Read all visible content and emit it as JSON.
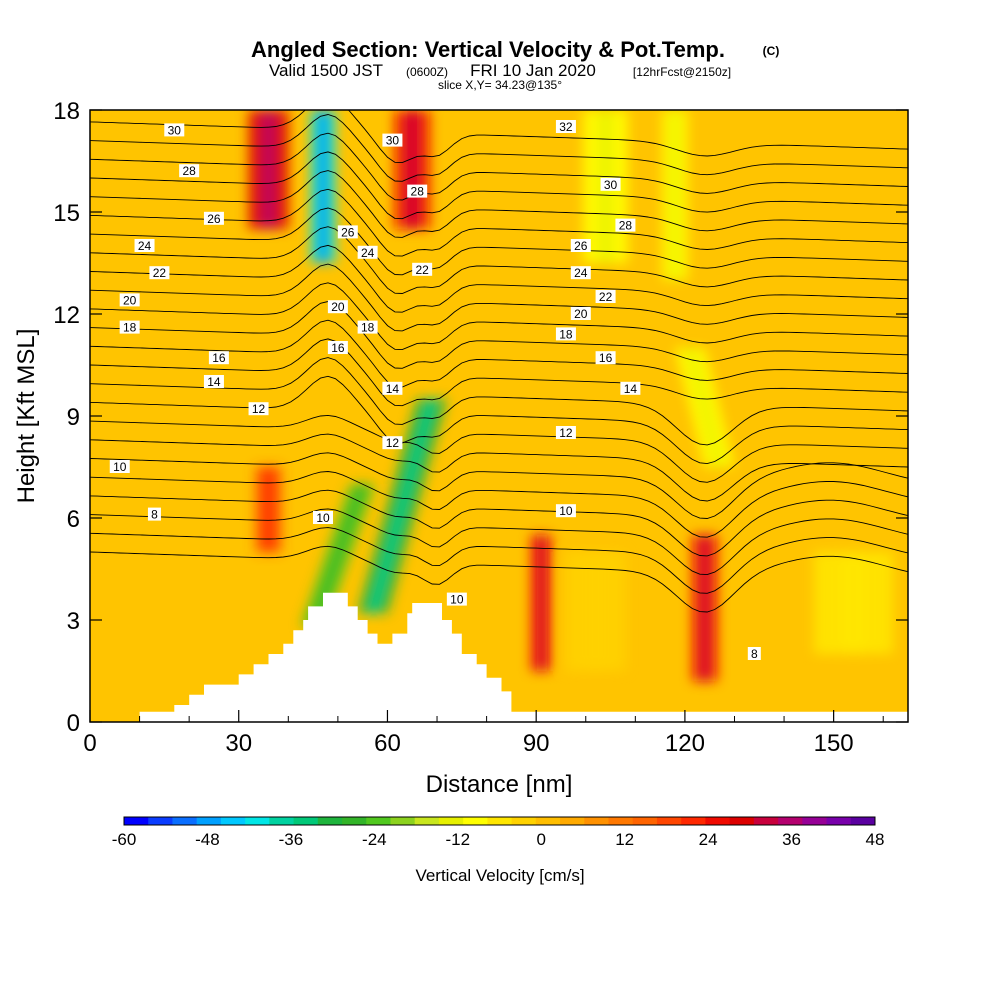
{
  "header": {
    "title_main": "Angled Section: Vertical Velocity & Pot.Temp.",
    "title_mark": "(C)",
    "valid_prefix": "Valid 1500 JST",
    "valid_utc": "(0600Z)",
    "valid_date": "FRI 10 Jan 2020",
    "forecast": "[12hrFcst@2150z]",
    "slice": "slice X,Y= 34.23@135°"
  },
  "chart_data": {
    "type": "heatmap",
    "xlabel": "Distance [nm]",
    "ylabel": "Height [Kft MSL]",
    "xlim": [
      0,
      165
    ],
    "ylim": [
      0,
      18
    ],
    "xticks": [
      0,
      30,
      60,
      90,
      120,
      150
    ],
    "yticks": [
      0,
      3,
      6,
      9,
      12,
      15,
      18
    ],
    "colorbar": {
      "label": "Vertical Velocity [cm/s]",
      "min": -60,
      "max": 48,
      "step": 3,
      "tick_values": [
        -60,
        -48,
        -36,
        -24,
        -12,
        0,
        12,
        24,
        36,
        48
      ],
      "colors": [
        "#0000ff",
        "#0a3cff",
        "#0a6eff",
        "#00a0ff",
        "#00c8ff",
        "#00e6e6",
        "#00d2a0",
        "#00c878",
        "#1eb43c",
        "#32b428",
        "#50c81e",
        "#8cd21e",
        "#c8e61e",
        "#e6f000",
        "#ffff00",
        "#ffe600",
        "#ffd200",
        "#ffbe00",
        "#ffaa00",
        "#ff9100",
        "#ff7800",
        "#ff6400",
        "#ff4600",
        "#ff2800",
        "#f00a00",
        "#dc0000",
        "#c8003c",
        "#b4006e",
        "#960096",
        "#7800aa",
        "#5a00a0"
      ]
    },
    "terrain": [
      [
        0,
        0
      ],
      [
        10,
        0
      ],
      [
        10,
        0.3
      ],
      [
        17,
        0.3
      ],
      [
        17,
        0.5
      ],
      [
        20,
        0.5
      ],
      [
        20,
        0.8
      ],
      [
        23,
        0.8
      ],
      [
        23,
        1.1
      ],
      [
        30,
        1.1
      ],
      [
        30,
        1.4
      ],
      [
        33,
        1.4
      ],
      [
        33,
        1.7
      ],
      [
        36,
        1.7
      ],
      [
        36,
        2.0
      ],
      [
        39,
        2.0
      ],
      [
        39,
        2.3
      ],
      [
        41,
        2.3
      ],
      [
        41,
        2.7
      ],
      [
        43,
        2.7
      ],
      [
        43,
        3.0
      ],
      [
        44,
        3.0
      ],
      [
        44,
        3.4
      ],
      [
        47,
        3.4
      ],
      [
        47,
        3.8
      ],
      [
        52,
        3.8
      ],
      [
        52,
        3.4
      ],
      [
        54,
        3.4
      ],
      [
        54,
        3.0
      ],
      [
        56,
        3.0
      ],
      [
        56,
        2.6
      ],
      [
        58,
        2.6
      ],
      [
        58,
        2.3
      ],
      [
        61,
        2.3
      ],
      [
        61,
        2.6
      ],
      [
        64,
        2.6
      ],
      [
        64,
        3.2
      ],
      [
        65,
        3.2
      ],
      [
        65,
        3.5
      ],
      [
        71,
        3.5
      ],
      [
        71,
        3.0
      ],
      [
        73,
        3.0
      ],
      [
        73,
        2.6
      ],
      [
        75,
        2.6
      ],
      [
        75,
        2.0
      ],
      [
        78,
        2.0
      ],
      [
        78,
        1.7
      ],
      [
        80,
        1.7
      ],
      [
        80,
        1.3
      ],
      [
        83,
        1.3
      ],
      [
        83,
        0.9
      ],
      [
        85,
        0.9
      ],
      [
        85,
        0.3
      ],
      [
        165,
        0.3
      ],
      [
        165,
        0
      ]
    ],
    "vertical_velocity_features": [
      {
        "x": 47,
        "top": 18,
        "bottom": 13.5,
        "width": 5,
        "value": -40,
        "tilt": 0
      },
      {
        "x": 63,
        "top": 9.5,
        "bottom": 3.2,
        "width": 6,
        "value": -30,
        "tilt": 12
      },
      {
        "x": 50,
        "top": 7,
        "bottom": 2.8,
        "width": 5,
        "value": -22,
        "tilt": 10
      },
      {
        "x": 36,
        "top": 18,
        "bottom": 14.5,
        "width": 8,
        "value": 28,
        "tilt": 0
      },
      {
        "x": 65,
        "top": 18,
        "bottom": 14.5,
        "width": 7,
        "value": 27,
        "tilt": 0
      },
      {
        "x": 36,
        "top": 7.5,
        "bottom": 5.0,
        "width": 5,
        "value": 18,
        "tilt": 0
      },
      {
        "x": 91,
        "top": 5.5,
        "bottom": 1.5,
        "width": 4,
        "value": 27,
        "tilt": 0
      },
      {
        "x": 124,
        "top": 5.5,
        "bottom": 1.2,
        "width": 5,
        "value": 25,
        "tilt": 0
      },
      {
        "x": 104,
        "top": 18,
        "bottom": 13.5,
        "width": 9,
        "value": -9,
        "tilt": 0
      },
      {
        "x": 118,
        "top": 18,
        "bottom": 13.0,
        "width": 5,
        "value": -9,
        "tilt": 0
      },
      {
        "x": 124,
        "top": 11,
        "bottom": 7.5,
        "width": 6,
        "value": -10,
        "tilt": -6
      },
      {
        "x": 154,
        "top": 5,
        "bottom": 2.0,
        "width": 16,
        "value": -6,
        "tilt": 0
      },
      {
        "x": 102,
        "top": 5,
        "bottom": 1.5,
        "width": 12,
        "value": -3,
        "tilt": 0
      }
    ],
    "contour_labels": [
      {
        "text": "30",
        "x": 17,
        "y": 17.4
      },
      {
        "text": "28",
        "x": 20,
        "y": 16.2
      },
      {
        "text": "26",
        "x": 25,
        "y": 14.8
      },
      {
        "text": "24",
        "x": 11,
        "y": 14.0
      },
      {
        "text": "22",
        "x": 14,
        "y": 13.2
      },
      {
        "text": "20",
        "x": 8,
        "y": 12.4
      },
      {
        "text": "18",
        "x": 8,
        "y": 11.6
      },
      {
        "text": "16",
        "x": 26,
        "y": 10.7
      },
      {
        "text": "14",
        "x": 25,
        "y": 10.0
      },
      {
        "text": "12",
        "x": 34,
        "y": 9.2
      },
      {
        "text": "10",
        "x": 6,
        "y": 7.5
      },
      {
        "text": "8",
        "x": 13,
        "y": 6.1
      },
      {
        "text": "30",
        "x": 61,
        "y": 17.1
      },
      {
        "text": "28",
        "x": 66,
        "y": 15.6
      },
      {
        "text": "26",
        "x": 52,
        "y": 14.4
      },
      {
        "text": "24",
        "x": 56,
        "y": 13.8
      },
      {
        "text": "22",
        "x": 67,
        "y": 13.3
      },
      {
        "text": "20",
        "x": 50,
        "y": 12.2
      },
      {
        "text": "18",
        "x": 56,
        "y": 11.6
      },
      {
        "text": "16",
        "x": 50,
        "y": 11.0
      },
      {
        "text": "14",
        "x": 61,
        "y": 9.8
      },
      {
        "text": "12",
        "x": 61,
        "y": 8.2
      },
      {
        "text": "10",
        "x": 47,
        "y": 6.0
      },
      {
        "text": "10",
        "x": 74,
        "y": 3.6
      },
      {
        "text": "32",
        "x": 96,
        "y": 17.5
      },
      {
        "text": "30",
        "x": 105,
        "y": 15.8
      },
      {
        "text": "28",
        "x": 108,
        "y": 14.6
      },
      {
        "text": "26",
        "x": 99,
        "y": 14.0
      },
      {
        "text": "24",
        "x": 99,
        "y": 13.2
      },
      {
        "text": "22",
        "x": 104,
        "y": 12.5
      },
      {
        "text": "20",
        "x": 99,
        "y": 12.0
      },
      {
        "text": "18",
        "x": 96,
        "y": 11.4
      },
      {
        "text": "16",
        "x": 104,
        "y": 10.7
      },
      {
        "text": "14",
        "x": 109,
        "y": 9.8
      },
      {
        "text": "12",
        "x": 96,
        "y": 8.5
      },
      {
        "text": "10",
        "x": 96,
        "y": 6.2
      },
      {
        "text": "8",
        "x": 134,
        "y": 2.0
      }
    ]
  }
}
